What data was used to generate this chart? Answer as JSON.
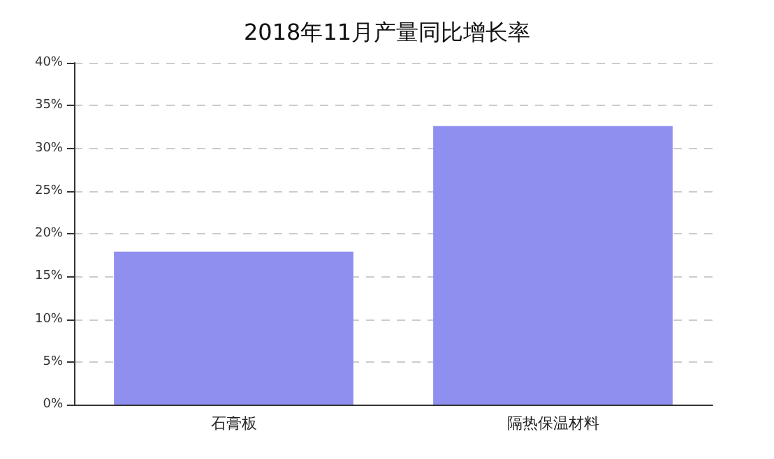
{
  "chart_data": {
    "type": "bar",
    "title": "2018年11月产量同比增长率",
    "categories": [
      "石膏板",
      "隔热保温材料"
    ],
    "values": [
      17.9,
      32.6
    ],
    "color": "#8f8fef",
    "ylim": [
      0,
      40
    ],
    "yticks": [
      {
        "value": 0,
        "label": "0%"
      },
      {
        "value": 5,
        "label": "5%"
      },
      {
        "value": 10,
        "label": "10%"
      },
      {
        "value": 15,
        "label": "15%"
      },
      {
        "value": 20,
        "label": "20%"
      },
      {
        "value": 25,
        "label": "25%"
      },
      {
        "value": 30,
        "label": "30%"
      },
      {
        "value": 35,
        "label": "35%"
      },
      {
        "value": 40,
        "label": "40%"
      }
    ],
    "grid": "y",
    "line_style": "dashed"
  }
}
